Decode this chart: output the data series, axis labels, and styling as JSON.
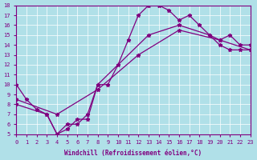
{
  "xlabel": "Windchill (Refroidissement éolien,°C)",
  "background_color": "#b0e0e8",
  "line_color": "#800080",
  "xlim": [
    0,
    23
  ],
  "ylim": [
    5,
    18
  ],
  "xticks": [
    0,
    1,
    2,
    3,
    4,
    5,
    6,
    7,
    8,
    9,
    10,
    11,
    12,
    13,
    14,
    15,
    16,
    17,
    18,
    19,
    20,
    21,
    22,
    23
  ],
  "yticks": [
    5,
    6,
    7,
    8,
    9,
    10,
    11,
    12,
    13,
    14,
    15,
    16,
    17,
    18
  ],
  "line1_x": [
    0,
    1,
    2,
    3,
    4,
    5,
    6,
    7,
    8,
    9,
    10,
    11,
    12,
    13,
    14,
    15,
    16,
    17,
    18,
    19,
    20,
    21,
    22,
    23
  ],
  "line1_y": [
    10,
    8.5,
    7.5,
    7,
    5,
    5.5,
    6.5,
    6.5,
    10,
    10,
    12,
    14.5,
    17,
    18,
    18,
    17.5,
    16.5,
    17,
    16,
    15,
    14,
    13.5,
    13.5,
    13.5
  ],
  "line2_x": [
    0,
    3,
    4,
    5,
    6,
    7,
    8,
    13,
    16,
    19,
    20,
    21,
    22,
    23
  ],
  "line2_y": [
    8,
    7,
    5,
    6,
    6,
    7,
    10,
    15,
    16,
    15,
    14.5,
    15,
    14,
    14
  ],
  "line3_x": [
    0,
    4,
    8,
    12,
    16,
    20,
    23
  ],
  "line3_y": [
    8.5,
    7,
    9.5,
    13,
    15.5,
    14.5,
    13.5
  ]
}
